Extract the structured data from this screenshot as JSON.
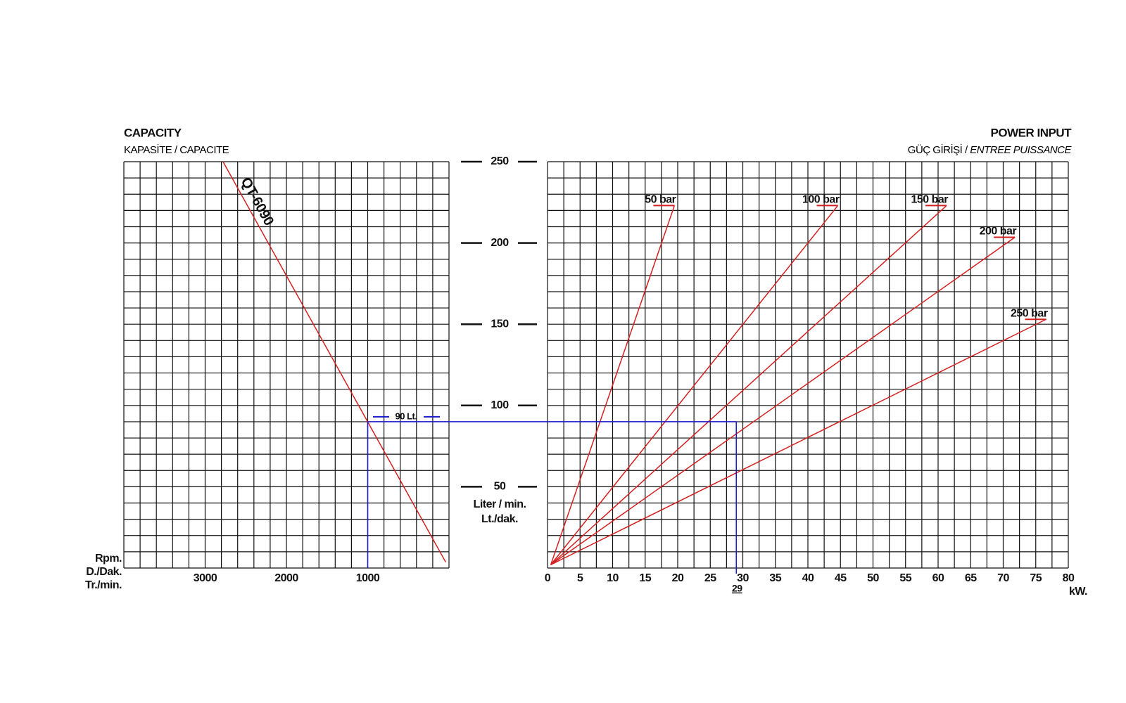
{
  "chart_data": [
    {
      "type": "line",
      "title": "CAPACITY",
      "subtitle": "KAPASİTE / CAPACITE",
      "x_label": [
        "Rpm.",
        "D./Dak.",
        "Tr./min."
      ],
      "y_label": [
        "Liter / min.",
        "Lt./dak."
      ],
      "xlim": [
        4000,
        0
      ],
      "ylim": [
        0,
        250
      ],
      "xticks": [
        3000,
        2000,
        1000
      ],
      "yticks": [
        50,
        100,
        150,
        200,
        250
      ],
      "grid": true,
      "xgrid": [
        0,
        200,
        400,
        600,
        800,
        1000,
        1200,
        1400,
        1600,
        1800,
        2000,
        2200,
        2400,
        2600,
        2800,
        3000,
        3200,
        3400,
        3600,
        3800,
        4000
      ],
      "ygrid": [
        0,
        10,
        20,
        30,
        40,
        50,
        60,
        70,
        80,
        90,
        100,
        110,
        120,
        130,
        140,
        150,
        160,
        170,
        180,
        190,
        200,
        210,
        220,
        230,
        240,
        250
      ],
      "series": [
        {
          "name": "QT-6090",
          "color": "#d42020",
          "x": [
            2780,
            40
          ],
          "values": [
            250,
            3.6
          ]
        }
      ],
      "operating_point": {
        "rpm": 1000,
        "flow": 90,
        "flow_label": "90 Lt.",
        "color": "#1a1acc"
      }
    },
    {
      "type": "line",
      "title": "POWER INPUT",
      "subtitle": "GÜÇ GİRİŞİ / ",
      "subtitle_italic": "ENTREE PUISSANCE",
      "x_label": "kW.",
      "xlim": [
        0,
        80
      ],
      "ylim": [
        0,
        250
      ],
      "xticks": [
        0,
        5,
        10,
        15,
        20,
        25,
        30,
        35,
        40,
        45,
        50,
        55,
        60,
        65,
        70,
        75,
        80
      ],
      "grid": true,
      "xgrid": [
        0,
        2.5,
        5,
        7.5,
        10,
        12.5,
        15,
        17.5,
        20,
        22.5,
        25,
        27.5,
        30,
        32.5,
        35,
        37.5,
        40,
        42.5,
        45,
        47.5,
        50,
        52.5,
        55,
        57.5,
        60,
        62.5,
        65,
        67.5,
        70,
        72.5,
        75,
        77.5,
        80
      ],
      "ygrid": [
        0,
        10,
        20,
        30,
        40,
        50,
        60,
        70,
        80,
        90,
        100,
        110,
        120,
        130,
        140,
        150,
        160,
        170,
        180,
        190,
        200,
        210,
        220,
        230,
        240,
        250
      ],
      "series": [
        {
          "name": "50 bar",
          "color": "#d42020",
          "x": [
            0.5,
            19.5
          ],
          "values": [
            2,
            223
          ]
        },
        {
          "name": "100 bar",
          "color": "#d42020",
          "x": [
            0.5,
            44.6
          ],
          "values": [
            2,
            223
          ]
        },
        {
          "name": "150 bar",
          "color": "#d42020",
          "x": [
            0.5,
            61.3
          ],
          "values": [
            2,
            223
          ]
        },
        {
          "name": "200 bar",
          "color": "#d42020",
          "x": [
            0.5,
            71.8
          ],
          "values": [
            2,
            203.5
          ]
        },
        {
          "name": "250 bar",
          "color": "#d42020",
          "x": [
            0.5,
            76.6
          ],
          "values": [
            2,
            153
          ]
        }
      ],
      "operating_point": {
        "flow": 90,
        "power": 29,
        "power_label": "29",
        "color": "#1a1acc"
      }
    }
  ]
}
